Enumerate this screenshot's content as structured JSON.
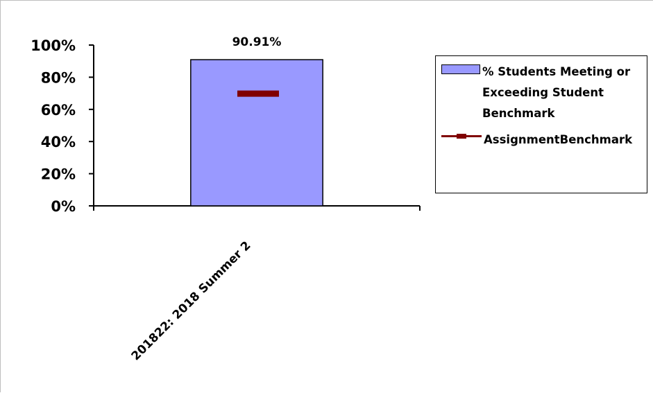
{
  "colors": {
    "bar_fill": "#9999ff",
    "bar_stroke": "#000000",
    "benchmark": "#800000",
    "axis": "#000000"
  },
  "chart_data": {
    "type": "bar",
    "categories": [
      "201822: 2018 Summer 2"
    ],
    "series": [
      {
        "name": "% Students Meeting or Exceeding Student Benchmark",
        "values": [
          90.91
        ],
        "data_labels": [
          "90.91%"
        ]
      },
      {
        "name": "AssignmentBenchmark",
        "values": [
          70
        ],
        "style": "marker"
      }
    ],
    "y_ticks": [
      "100%",
      "80%",
      "60%",
      "40%",
      "20%",
      "0%"
    ],
    "ylim": [
      0,
      100
    ],
    "grid": false,
    "legend_position": "right",
    "title": "",
    "xlabel": "",
    "ylabel": ""
  }
}
